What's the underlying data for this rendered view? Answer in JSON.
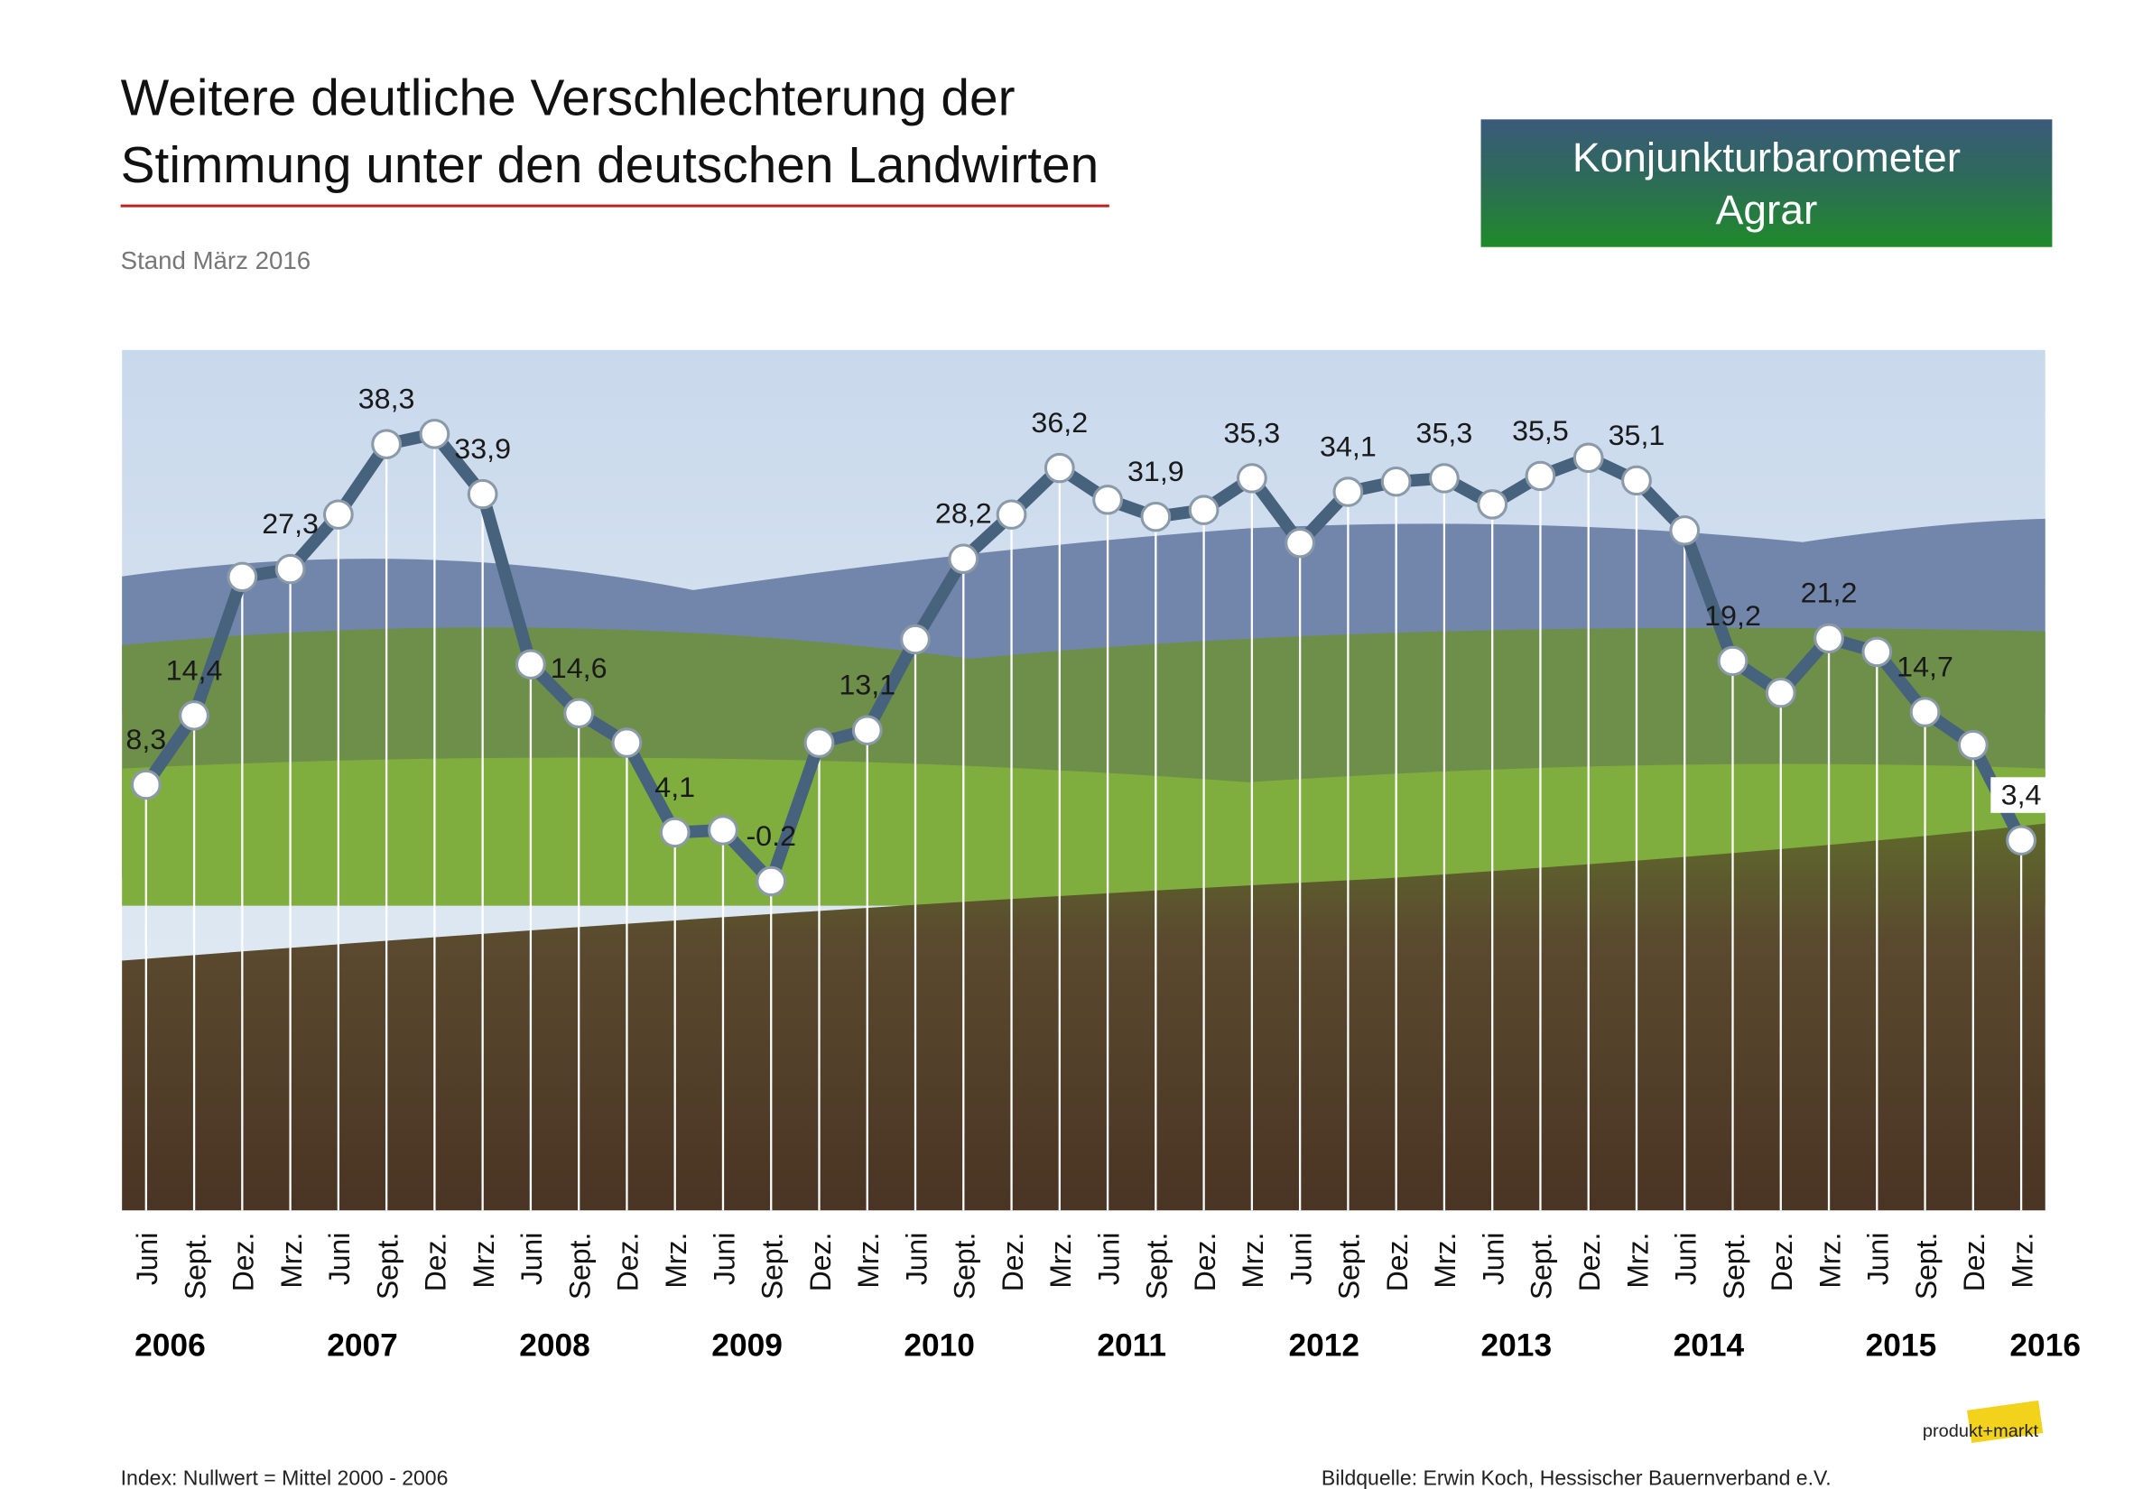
{
  "header": {
    "title_lines": [
      "Weitere deutliche Verschlechterung der",
      "Stimmung unter den deutschen Landwirten"
    ],
    "subtitle": "Stand März 2016",
    "badge_lines": [
      "Konjunkturbarometer",
      "Agrar"
    ]
  },
  "chart_data": {
    "type": "line",
    "categories": [
      "Juni",
      "Sept.",
      "Dez.",
      "Mrz.",
      "Juni",
      "Sept.",
      "Dez.",
      "Mrz.",
      "Juni",
      "Sept.",
      "Dez.",
      "Mrz.",
      "Juni",
      "Sept.",
      "Dez.",
      "Mrz.",
      "Juni",
      "Sept.",
      "Dez.",
      "Mrz.",
      "Juni",
      "Sept.",
      "Dez.",
      "Mrz.",
      "Juni",
      "Sept.",
      "Dez.",
      "Mrz.",
      "Juni",
      "Sept.",
      "Dez.",
      "Mrz.",
      "Juni",
      "Sept.",
      "Dez.",
      "Mrz.",
      "Juni",
      "Sept.",
      "Dez.",
      "Mrz."
    ],
    "years": [
      "2006",
      "2007",
      "2008",
      "2009",
      "2010",
      "2011",
      "2012",
      "2013",
      "2014",
      "2015",
      "2016"
    ],
    "values": [
      8.3,
      14.4,
      26.6,
      27.3,
      32.1,
      38.3,
      39.2,
      33.9,
      18.9,
      14.6,
      12.0,
      4.1,
      4.3,
      -0.2,
      12.0,
      13.1,
      21.1,
      28.2,
      32.1,
      36.2,
      33.4,
      31.9,
      32.5,
      35.3,
      29.6,
      34.1,
      35.0,
      35.3,
      33.0,
      35.5,
      37.1,
      35.1,
      30.7,
      19.2,
      16.4,
      21.2,
      20.0,
      14.7,
      11.8,
      3.4
    ],
    "value_labels": [
      "8,3",
      "14,4",
      null,
      "27,3",
      null,
      "38,3",
      null,
      "33,9",
      null,
      "14,6",
      null,
      "4,1",
      null,
      "-0.2",
      null,
      "13,1",
      null,
      "28,2",
      null,
      "36,2",
      null,
      "31,9",
      null,
      "35,3",
      null,
      "34,1",
      null,
      "35,3",
      null,
      "35,5",
      null,
      "35,1",
      null,
      "19,2",
      null,
      "21,2",
      null,
      "14,7",
      null,
      "3,4"
    ],
    "color": "#46627c",
    "ylim": [
      -29.2,
      46.6
    ]
  },
  "footer": {
    "note": "Index: Nullwert = Mittel 2000 - 2006",
    "source": "Bildquelle: Erwin Koch, Hessischer Bauernverband e.V.",
    "logo": "produkt+markt"
  }
}
